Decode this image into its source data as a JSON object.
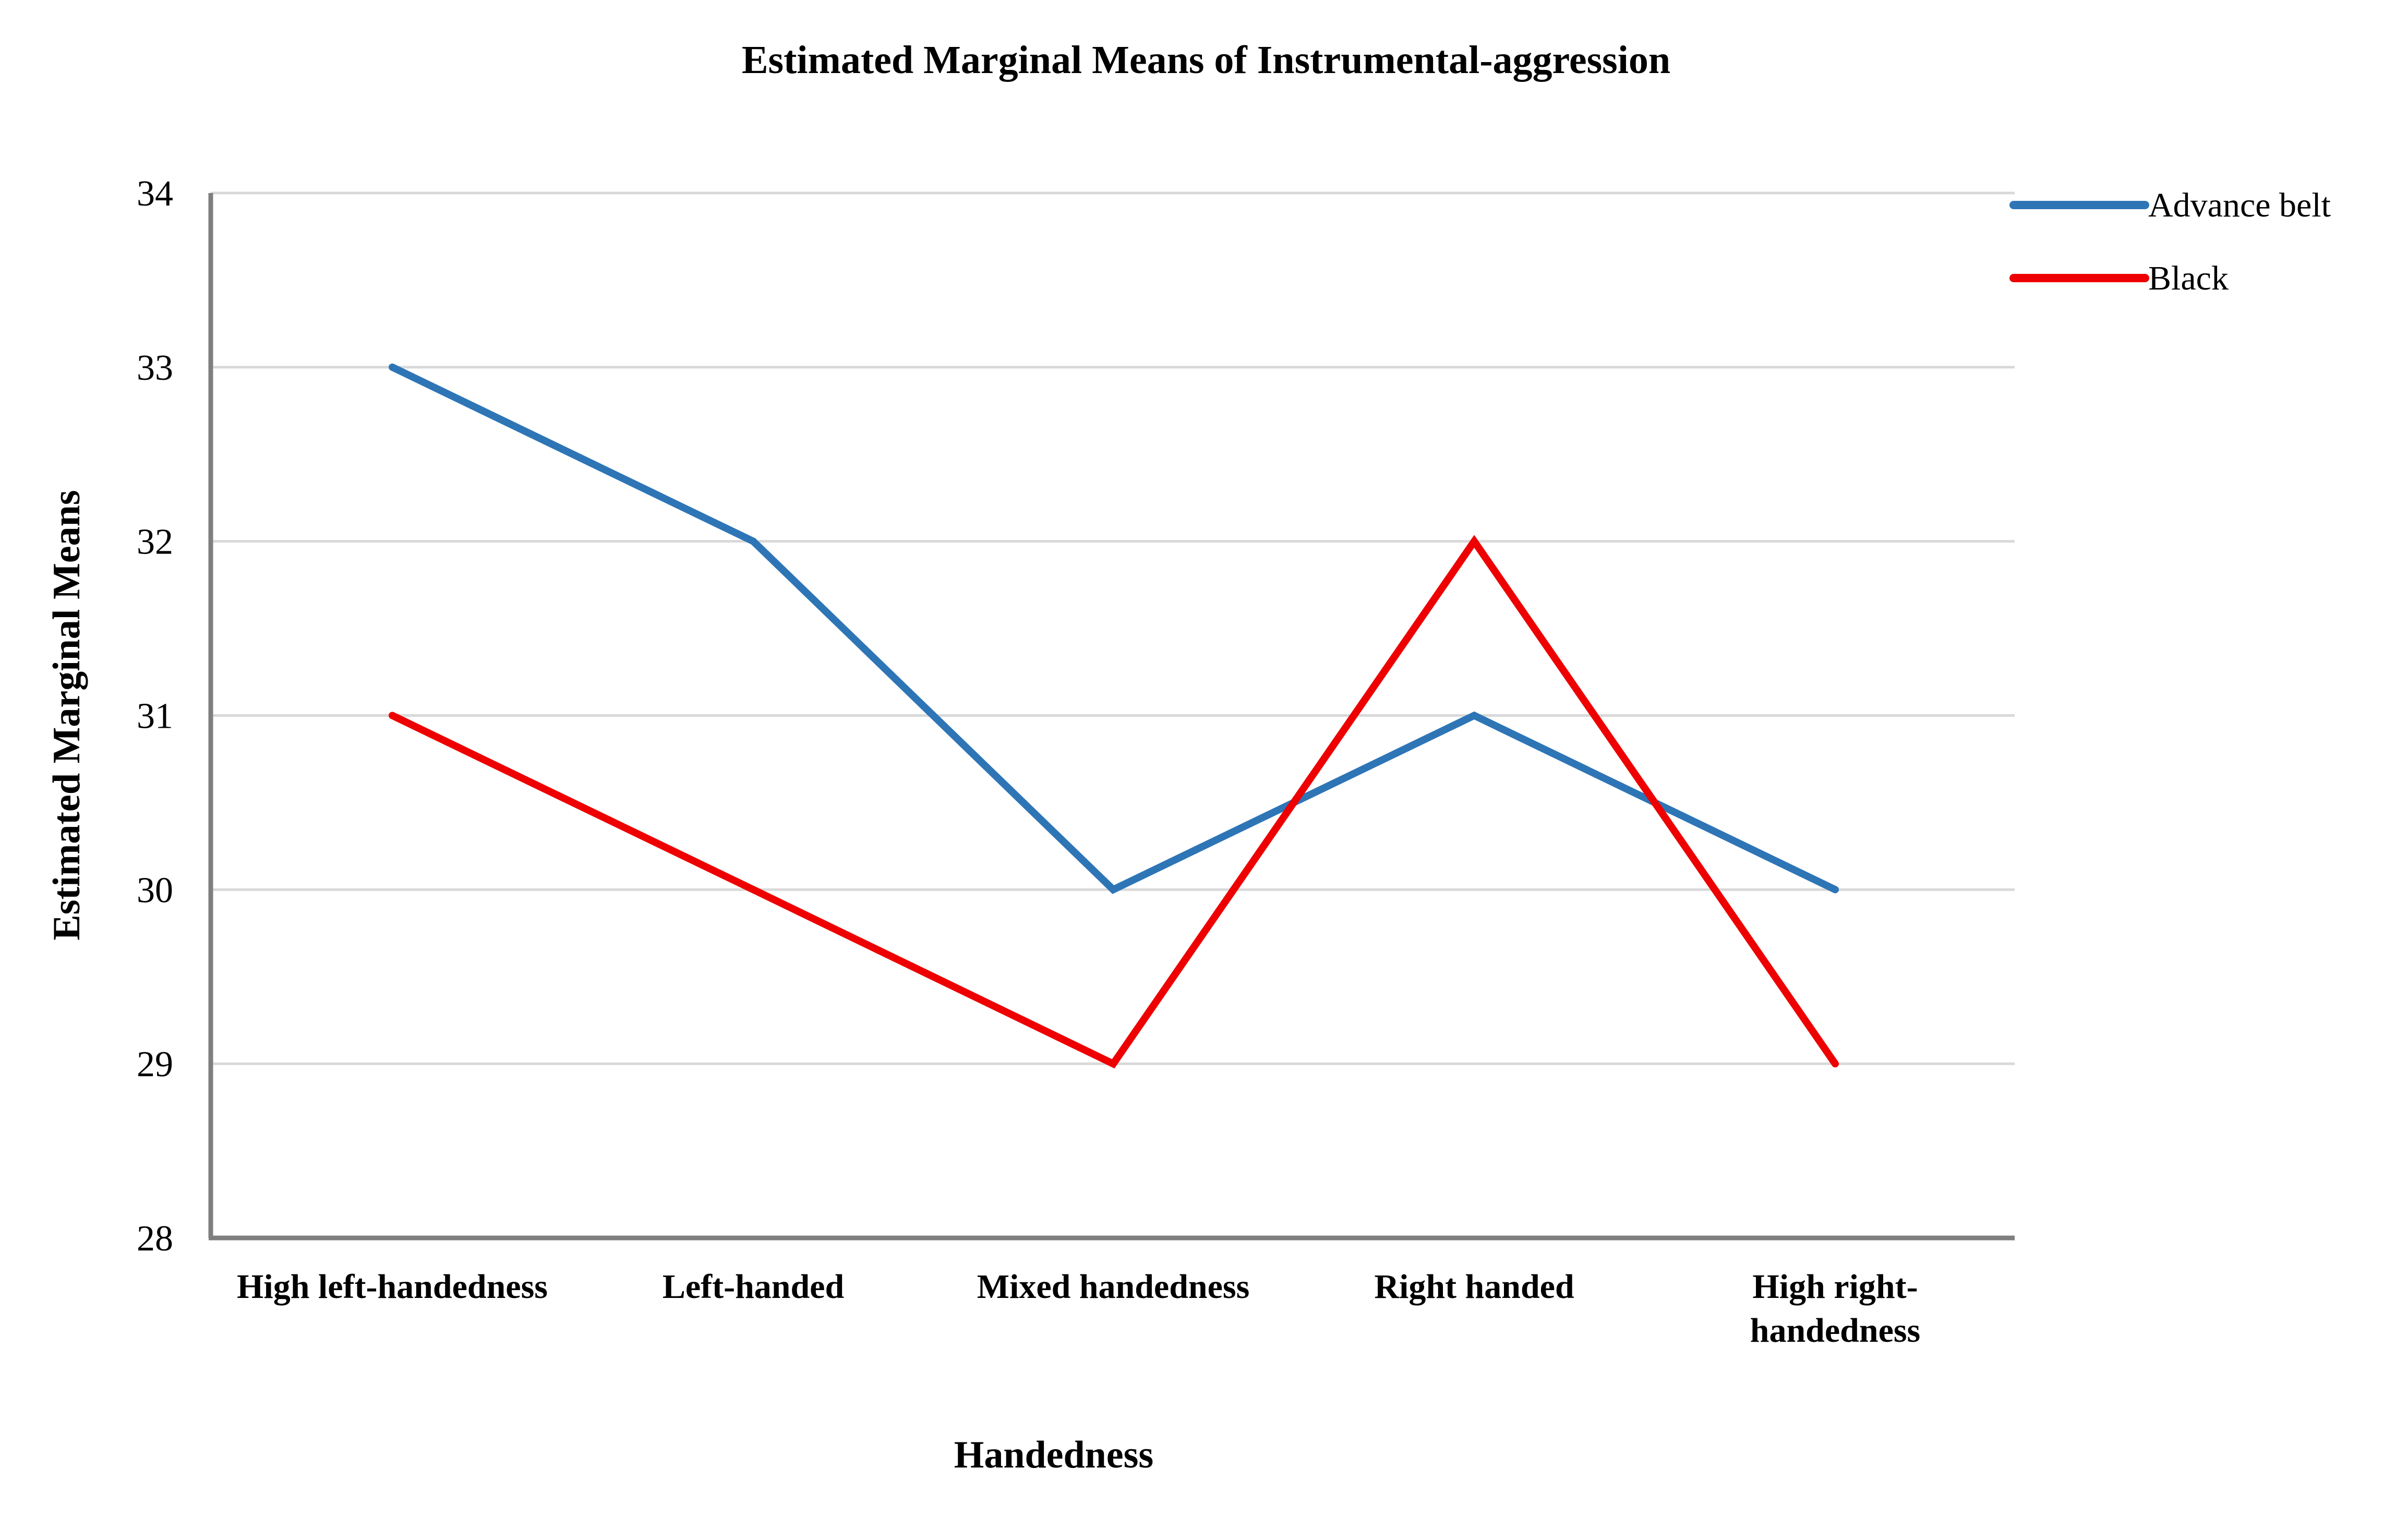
{
  "chart_data": {
    "type": "line",
    "title": "Estimated Marginal Means of Instrumental-aggression",
    "xlabel": "Handedness",
    "ylabel": "Estimated Marginal Means",
    "categories": [
      [
        "High left-handedness"
      ],
      [
        "Left-handed"
      ],
      [
        "Mixed handedness"
      ],
      [
        "Right handed"
      ],
      [
        "High right-",
        "handedness"
      ]
    ],
    "ylim": [
      28,
      34
    ],
    "yticks": [
      28,
      29,
      30,
      31,
      32,
      33,
      34
    ],
    "grid": true,
    "legend_position": "top-right",
    "series": [
      {
        "name": "Advance belt",
        "color": "#2e75b6",
        "values": [
          33,
          32,
          30,
          31,
          30
        ]
      },
      {
        "name": "Black",
        "color": "#ee0000",
        "values": [
          31,
          30,
          29,
          32,
          29
        ]
      }
    ]
  }
}
